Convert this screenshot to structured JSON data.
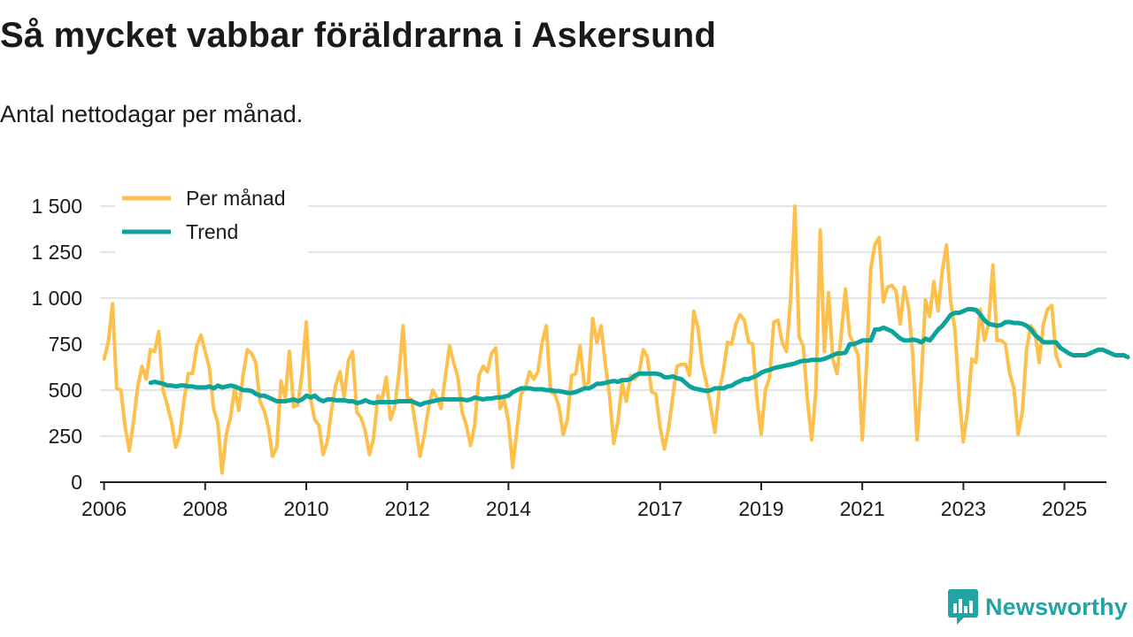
{
  "header": {
    "title": "Så mycket vabbar föräldrarna i Askersund",
    "subtitle": "Antal nettodagar per månad."
  },
  "brand": {
    "name": "Newsworthy"
  },
  "colors": {
    "monthly": "#fdc04c",
    "trend": "#0ba39a",
    "grid": "#dcdcdc",
    "axis": "#222222",
    "brand": "#21a5a4"
  },
  "chart_data": {
    "type": "line",
    "title": "Så mycket vabbar föräldrarna i Askersund",
    "subtitle": "Antal nettodagar per månad.",
    "xlabel": "",
    "ylabel": "",
    "grid": true,
    "legend_position": "top-left",
    "xlim": [
      2005.92,
      2025.83
    ],
    "ylim": [
      0,
      1500
    ],
    "yticks": [
      0,
      250,
      500,
      750,
      1000,
      1250,
      1500
    ],
    "ytick_labels": [
      "0",
      "250",
      "500",
      "750",
      "1 000",
      "1 250",
      "1 500"
    ],
    "xticks": [
      2006,
      2008,
      2010,
      2012,
      2014,
      2017,
      2019,
      2021,
      2023,
      2025
    ],
    "xtick_labels": [
      "2006",
      "2008",
      "2010",
      "2012",
      "2014",
      "2017",
      "2019",
      "2021",
      "2023",
      "2025"
    ],
    "series": [
      {
        "name": "Per månad",
        "color": "#fdc04c",
        "x_start": 2006.0,
        "x_step": 0.08333,
        "values": [
          670,
          760,
          970,
          510,
          500,
          300,
          170,
          330,
          520,
          630,
          560,
          720,
          710,
          820,
          500,
          420,
          330,
          190,
          260,
          450,
          590,
          590,
          740,
          800,
          710,
          620,
          400,
          320,
          50,
          260,
          350,
          510,
          390,
          580,
          720,
          700,
          650,
          440,
          390,
          300,
          140,
          190,
          550,
          460,
          710,
          410,
          420,
          590,
          870,
          460,
          340,
          310,
          150,
          220,
          390,
          530,
          600,
          460,
          660,
          710,
          380,
          350,
          280,
          150,
          240,
          470,
          450,
          570,
          340,
          410,
          590,
          850,
          460,
          450,
          300,
          140,
          250,
          400,
          500,
          460,
          400,
          570,
          740,
          650,
          570,
          380,
          310,
          200,
          310,
          580,
          630,
          600,
          700,
          730,
          400,
          450,
          330,
          80,
          280,
          480,
          510,
          600,
          560,
          600,
          760,
          850,
          490,
          480,
          410,
          260,
          340,
          580,
          590,
          740,
          530,
          540,
          890,
          760,
          850,
          640,
          470,
          210,
          330,
          540,
          440,
          580,
          560,
          590,
          720,
          680,
          490,
          480,
          300,
          180,
          290,
          460,
          630,
          640,
          640,
          580,
          930,
          840,
          640,
          540,
          410,
          270,
          490,
          600,
          760,
          750,
          860,
          910,
          880,
          760,
          750,
          450,
          260,
          500,
          570,
          870,
          880,
          760,
          710,
          1000,
          1500,
          790,
          740,
          440,
          230,
          500,
          1370,
          710,
          1030,
          670,
          590,
          800,
          1050,
          800,
          750,
          690,
          230,
          630,
          1160,
          1290,
          1330,
          980,
          1060,
          1070,
          1040,
          860,
          1060,
          950,
          690,
          230,
          550,
          990,
          900,
          1090,
          930,
          1150,
          1290,
          980,
          830,
          470,
          220,
          390,
          670,
          650,
          940,
          770,
          860,
          1180,
          770,
          770,
          750,
          590,
          510,
          260,
          380,
          720,
          850,
          820,
          650,
          860,
          940,
          960,
          690,
          630
        ]
      },
      {
        "name": "Trend",
        "color": "#0ba39a",
        "x_start": 2006.92,
        "x_step": 0.08333,
        "values": [
          540,
          545,
          540,
          535,
          525,
          525,
          520,
          525,
          525,
          520,
          520,
          515,
          515,
          515,
          520,
          510,
          525,
          515,
          520,
          525,
          520,
          510,
          500,
          500,
          495,
          480,
          470,
          470,
          460,
          450,
          440,
          440,
          440,
          445,
          450,
          440,
          450,
          470,
          460,
          470,
          450,
          440,
          450,
          450,
          445,
          445,
          445,
          440,
          440,
          430,
          435,
          445,
          435,
          430,
          435,
          435,
          435,
          435,
          435,
          440,
          440,
          440,
          440,
          430,
          420,
          430,
          435,
          440,
          445,
          450,
          450,
          450,
          450,
          450,
          450,
          445,
          450,
          460,
          455,
          450,
          455,
          455,
          460,
          460,
          465,
          470,
          490,
          500,
          510,
          510,
          510,
          505,
          505,
          505,
          500,
          500,
          495,
          495,
          490,
          485,
          485,
          490,
          500,
          510,
          510,
          520,
          535,
          535,
          540,
          545,
          550,
          545,
          555,
          555,
          560,
          580,
          590,
          590,
          590,
          590,
          590,
          585,
          570,
          570,
          575,
          565,
          560,
          540,
          520,
          510,
          505,
          500,
          495,
          500,
          510,
          510,
          510,
          520,
          525,
          540,
          550,
          560,
          560,
          570,
          580,
          595,
          605,
          610,
          620,
          625,
          630,
          635,
          640,
          645,
          655,
          660,
          660,
          665,
          665,
          665,
          670,
          680,
          690,
          700,
          700,
          705,
          750,
          750,
          760,
          770,
          770,
          770,
          830,
          830,
          840,
          830,
          820,
          800,
          780,
          770,
          770,
          775,
          770,
          760,
          780,
          770,
          800,
          830,
          850,
          880,
          910,
          920,
          920,
          930,
          940,
          940,
          935,
          910,
          880,
          860,
          855,
          850,
          855,
          870,
          870,
          865,
          865,
          860,
          850,
          830,
          800,
          780,
          760,
          760,
          760,
          760,
          730,
          715,
          700,
          690,
          690,
          690,
          690,
          700,
          710,
          720,
          720,
          710,
          700,
          690,
          690,
          690,
          680
        ]
      }
    ]
  }
}
